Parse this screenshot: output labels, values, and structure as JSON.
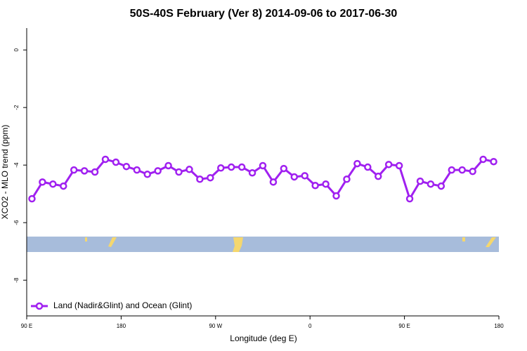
{
  "chart_data": {
    "type": "line",
    "title": "50S-40S February (Ver 8)   2014-09-06 to 2017-06-30",
    "x_label": "Longitude (deg E)",
    "y_label": "XCO2 - MLO trend (ppm)",
    "x": [
      95,
      105,
      115,
      125,
      135,
      145,
      155,
      165,
      175,
      185,
      195,
      205,
      215,
      225,
      235,
      245,
      255,
      265,
      275,
      285,
      295,
      305,
      315,
      325,
      335,
      345,
      355,
      365,
      375,
      385,
      395,
      405,
      415,
      425,
      435,
      445,
      455,
      465,
      475,
      485,
      495,
      505,
      515,
      525,
      535
    ],
    "series": [
      {
        "name": "Land (Nadir&Glint) and Ocean (Glint)",
        "color": "#a020f0",
        "values": [
          -5.17,
          -4.59,
          -4.66,
          -4.73,
          -4.17,
          -4.2,
          -4.24,
          -3.8,
          -3.9,
          -4.05,
          -4.17,
          -4.32,
          -4.2,
          -4.02,
          -4.24,
          -4.15,
          -4.49,
          -4.44,
          -4.1,
          -4.07,
          -4.07,
          -4.27,
          -4.02,
          -4.59,
          -4.12,
          -4.41,
          -4.37,
          -4.71,
          -4.66,
          -5.07,
          -4.49,
          -3.95,
          -4.07,
          -4.39,
          -3.98,
          -4.02,
          -5.17,
          -4.56,
          -4.66,
          -4.73,
          -4.17,
          -4.17,
          -4.22,
          -3.8,
          -3.88
        ]
      }
    ],
    "xlim": [
      90,
      540
    ],
    "xticks": [
      {
        "value": 90,
        "label": "90 E"
      },
      180,
      {
        "value": 270,
        "label": "90 W"
      },
      {
        "value": 360,
        "label": "0"
      },
      {
        "value": 450,
        "label": "90 E"
      },
      {
        "value": 540,
        "label": "180"
      }
    ],
    "ylim": [
      -9.24,
      0.76
    ],
    "yticks": [
      0,
      -2,
      -4,
      -6,
      -8
    ],
    "legend": "bottom-left"
  }
}
